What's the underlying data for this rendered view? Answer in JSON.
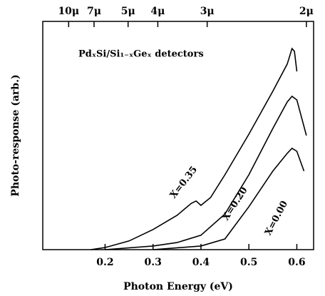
{
  "chart_data": {
    "type": "line",
    "xlabel": "Photon Energy (eV)",
    "ylabel": "Photo-response (arb.)",
    "annotation": "PdₓSi/Si₁₋ₓGeₓ detectors",
    "xlim": [
      0.07,
      0.635
    ],
    "xticks": [
      0.2,
      0.3,
      0.4,
      0.5,
      0.6
    ],
    "x2ticks": [
      {
        "value": 0.124,
        "label": "10μ"
      },
      {
        "value": 0.177,
        "label": "7μ"
      },
      {
        "value": 0.248,
        "label": "5μ"
      },
      {
        "value": 0.31,
        "label": "4μ"
      },
      {
        "value": 0.413,
        "label": "3μ"
      },
      {
        "value": 0.62,
        "label": "2μ"
      }
    ],
    "ylim": [
      0,
      100
    ],
    "series": [
      {
        "name": "X=0.35",
        "color": "#000000",
        "x": [
          0.17,
          0.2,
          0.25,
          0.3,
          0.35,
          0.38,
          0.39,
          0.4,
          0.42,
          0.45,
          0.5,
          0.55,
          0.58,
          0.59,
          0.595,
          0.6
        ],
        "values": [
          0,
          0.9,
          3.8,
          8.8,
          15,
          20.3,
          21.3,
          19.4,
          22.8,
          32.8,
          50.6,
          69.4,
          81.3,
          88.1,
          86.9,
          78.1
        ]
      },
      {
        "name": "X=0.20",
        "color": "#000000",
        "x": [
          0.2,
          0.3,
          0.35,
          0.4,
          0.45,
          0.5,
          0.55,
          0.58,
          0.59,
          0.6,
          0.62
        ],
        "values": [
          0,
          1.6,
          3.1,
          6.3,
          15.6,
          32.8,
          53.1,
          64.7,
          67.2,
          65.6,
          50
        ]
      },
      {
        "name": "X=0.00",
        "color": "#000000",
        "x": [
          0.3,
          0.4,
          0.45,
          0.5,
          0.55,
          0.58,
          0.59,
          0.6,
          0.615
        ],
        "values": [
          0,
          1.6,
          4.7,
          18.8,
          34.4,
          42.2,
          44.4,
          43.1,
          34.4
        ]
      }
    ]
  }
}
